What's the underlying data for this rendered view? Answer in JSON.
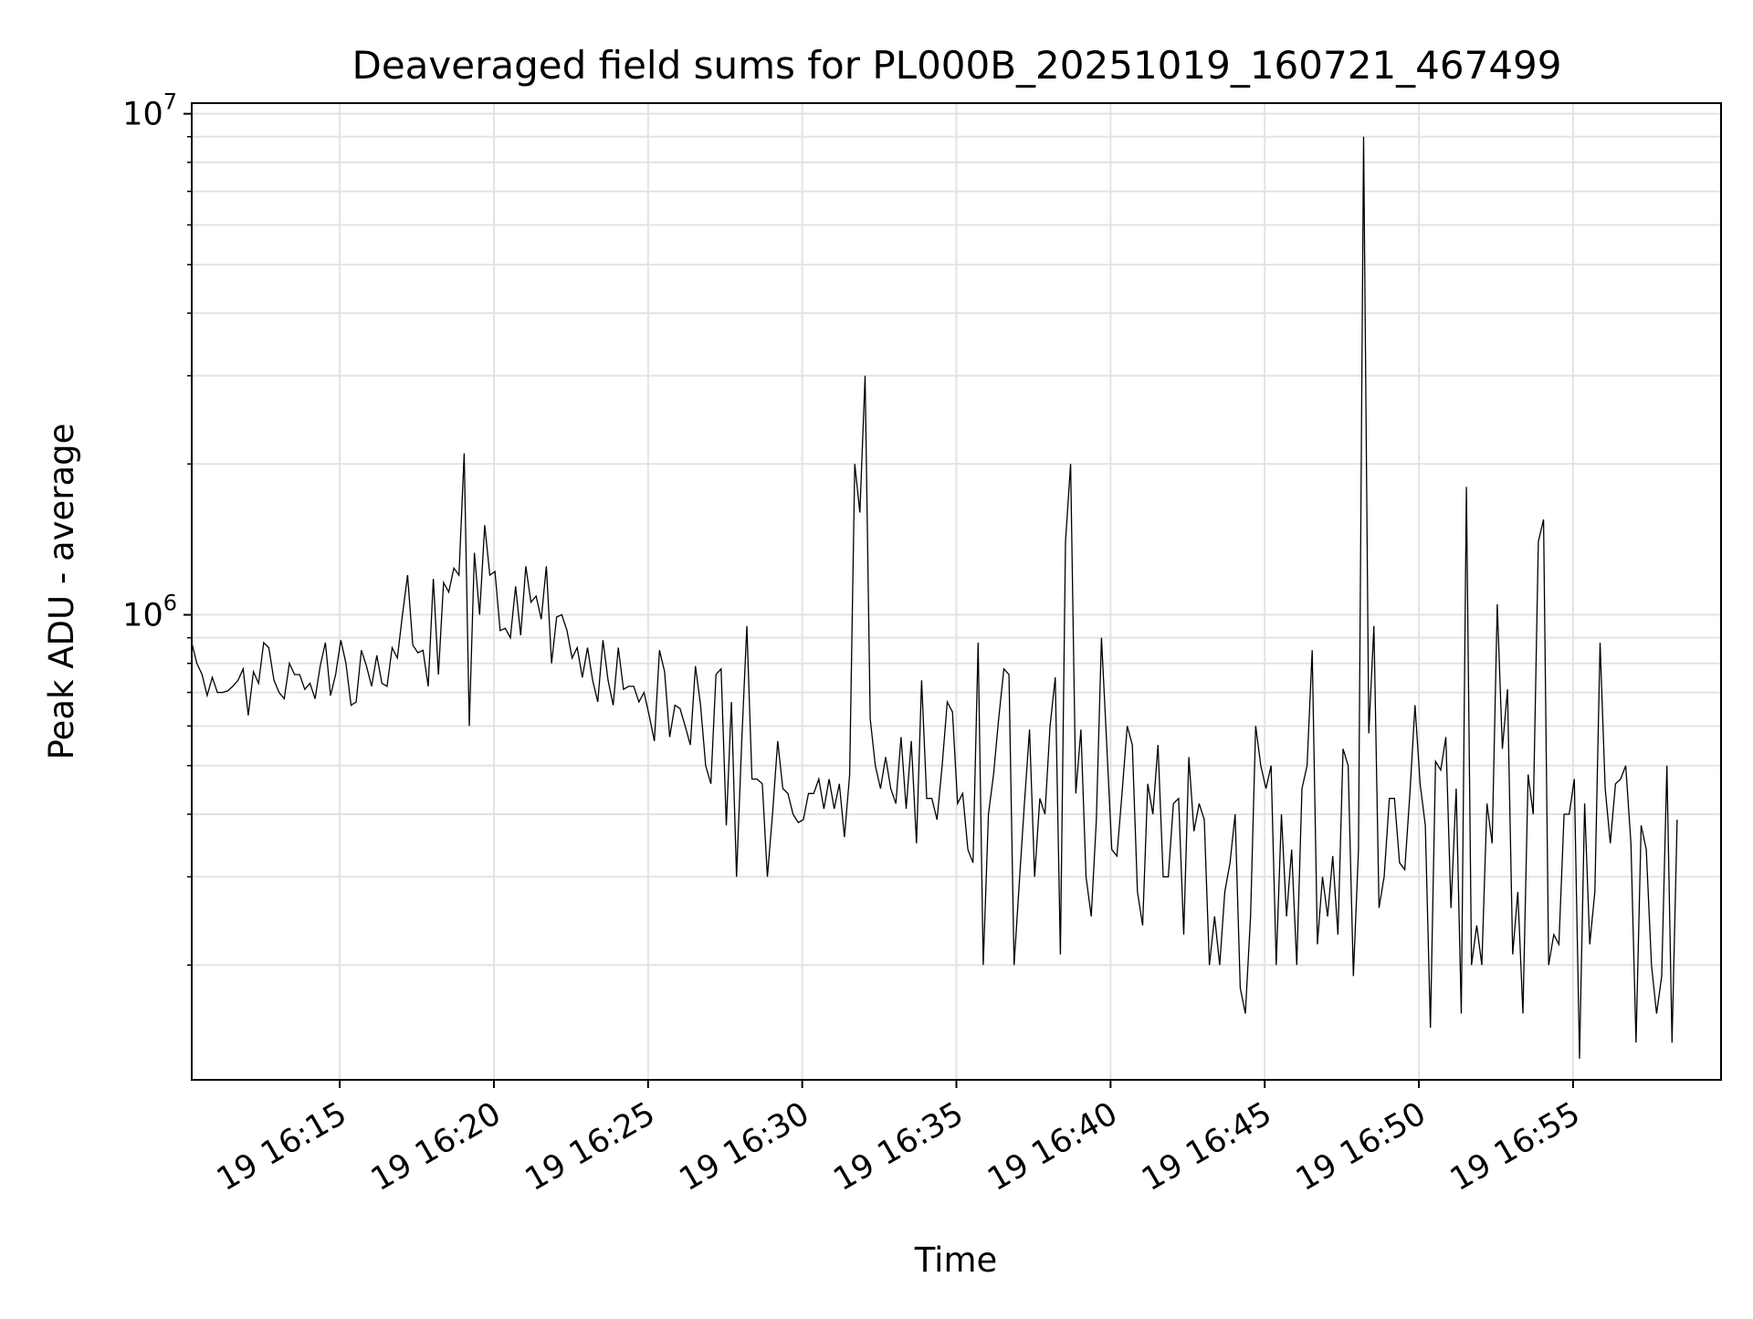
{
  "chart_data": {
    "type": "line",
    "title": "Deaveraged field sums for PL000B_20251019_160721_467499",
    "xlabel": "Time",
    "ylabel": "Peak ADU - average",
    "yscale": "log",
    "ylim": [
      118000,
      10500000
    ],
    "y_ticks": [
      {
        "base": "10",
        "exp": "6",
        "value": 1000000
      },
      {
        "base": "10",
        "exp": "7",
        "value": 10000000
      }
    ],
    "xlim_minutes": [
      10.2,
      59.8
    ],
    "x_ticks": [
      {
        "label": "19 16:15",
        "minutes": 15
      },
      {
        "label": "19 16:20",
        "minutes": 20
      },
      {
        "label": "19 16:25",
        "minutes": 25
      },
      {
        "label": "19 16:30",
        "minutes": 30
      },
      {
        "label": "19 16:35",
        "minutes": 35
      },
      {
        "label": "19 16:40",
        "minutes": 40
      },
      {
        "label": "19 16:45",
        "minutes": 45
      },
      {
        "label": "19 16:50",
        "minutes": 50
      },
      {
        "label": "19 16:55",
        "minutes": 55
      }
    ],
    "grid": true,
    "line_color": "#000000",
    "grid_color": "#e3e3e3",
    "series": [
      {
        "name": "Peak ADU - average",
        "x_start_minutes": 10.2,
        "x_step_minutes": 0.1667,
        "values": [
          880000,
          800000,
          760000,
          690000,
          750000,
          700000,
          700000,
          705000,
          720000,
          740000,
          780000,
          630000,
          770000,
          730000,
          880000,
          860000,
          740000,
          700000,
          680000,
          800000,
          760000,
          760000,
          710000,
          730000,
          680000,
          790000,
          880000,
          690000,
          760000,
          890000,
          800000,
          660000,
          670000,
          850000,
          790000,
          720000,
          830000,
          730000,
          720000,
          860000,
          820000,
          1000000,
          1200000,
          870000,
          840000,
          850000,
          720000,
          1180000,
          760000,
          1160000,
          1110000,
          1240000,
          1200000,
          2100000,
          600000,
          1330000,
          1000000,
          1510000,
          1200000,
          1220000,
          930000,
          940000,
          900000,
          1140000,
          910000,
          1250000,
          1060000,
          1090000,
          980000,
          1250000,
          800000,
          990000,
          1000000,
          930000,
          820000,
          860000,
          750000,
          860000,
          740000,
          670000,
          890000,
          740000,
          660000,
          860000,
          710000,
          720000,
          720000,
          670000,
          700000,
          630000,
          560000,
          850000,
          770000,
          570000,
          660000,
          650000,
          600000,
          550000,
          790000,
          660000,
          500000,
          460000,
          760000,
          780000,
          380000,
          670000,
          300000,
          560000,
          950000,
          470000,
          470000,
          460000,
          300000,
          400000,
          560000,
          450000,
          440000,
          400000,
          385000,
          390000,
          440000,
          440000,
          470000,
          410000,
          470000,
          410000,
          460000,
          360000,
          480000,
          2000000,
          1600000,
          3000000,
          620000,
          500000,
          450000,
          520000,
          450000,
          420000,
          570000,
          410000,
          560000,
          350000,
          740000,
          430000,
          430000,
          390000,
          500000,
          670000,
          640000,
          420000,
          440000,
          340000,
          320000,
          880000,
          200000,
          400000,
          480000,
          620000,
          780000,
          760000,
          200000,
          290000,
          420000,
          590000,
          300000,
          430000,
          400000,
          600000,
          750000,
          210000,
          1400000,
          2000000,
          440000,
          590000,
          300000,
          250000,
          390000,
          900000,
          560000,
          340000,
          330000,
          440000,
          600000,
          550000,
          280000,
          240000,
          460000,
          400000,
          550000,
          300000,
          300000,
          420000,
          430000,
          230000,
          520000,
          370000,
          420000,
          390000,
          200000,
          250000,
          200000,
          280000,
          320000,
          400000,
          180000,
          160000,
          250000,
          600000,
          500000,
          450000,
          500000,
          200000,
          400000,
          250000,
          340000,
          200000,
          450000,
          500000,
          850000,
          220000,
          300000,
          250000,
          330000,
          230000,
          540000,
          500000,
          190000,
          340000,
          9000000,
          580000,
          950000,
          260000,
          300000,
          430000,
          430000,
          320000,
          310000,
          440000,
          660000,
          460000,
          380000,
          150000,
          510000,
          490000,
          570000,
          260000,
          450000,
          160000,
          1800000,
          200000,
          240000,
          200000,
          420000,
          350000,
          1050000,
          540000,
          710000,
          210000,
          280000,
          160000,
          480000,
          400000,
          1400000,
          1550000,
          200000,
          230000,
          220000,
          400000,
          400000,
          470000,
          130000,
          420000,
          220000,
          280000,
          880000,
          450000,
          350000,
          460000,
          470000,
          500000,
          350000,
          140000,
          380000,
          340000,
          200000,
          160000,
          190000,
          500000,
          140000,
          390000
        ]
      }
    ]
  }
}
